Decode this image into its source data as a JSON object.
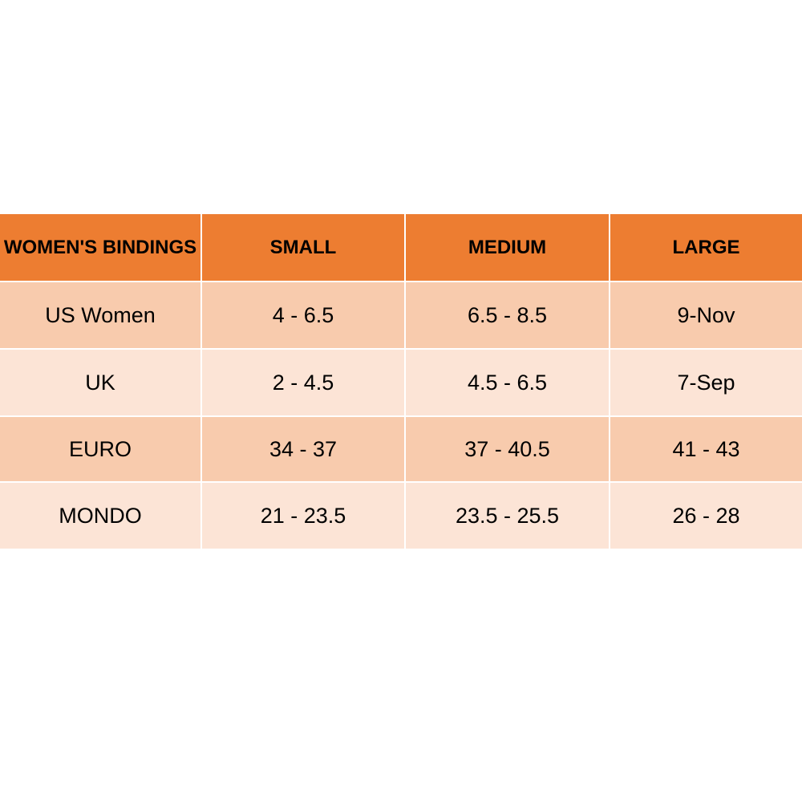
{
  "chart_data": {
    "type": "table",
    "title": "WOMEN'S BINDINGS",
    "columns": [
      "WOMEN'S BINDINGS",
      "SMALL",
      "MEDIUM",
      "LARGE"
    ],
    "rows": [
      [
        "US Women",
        "4 - 6.5",
        "6.5 - 8.5",
        "9-Nov"
      ],
      [
        "UK",
        "2 - 4.5",
        "4.5 - 6.5",
        "7-Sep"
      ],
      [
        "EURO",
        "34 - 37",
        "37 - 40.5",
        "41 - 43"
      ],
      [
        "MONDO",
        "21 - 23.5",
        "23.5 - 25.5",
        "26 - 28"
      ]
    ],
    "layout_hints": {
      "header_row_background": "#ED7D31",
      "odd_data_row_background": "#F8CBAD",
      "even_data_row_background": "#FCE4D6",
      "divider_color": "#FFFFFF",
      "text_color": "#000000",
      "page_background": "#FFFFFF"
    }
  }
}
